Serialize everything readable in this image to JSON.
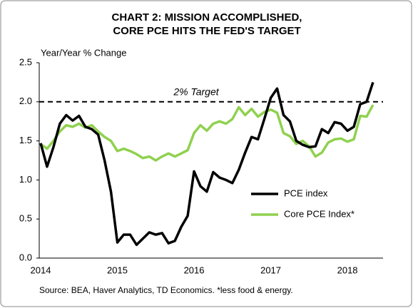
{
  "chart_data": {
    "type": "line",
    "title": [
      "CHART 2: MISSION ACCOMPLISHED,",
      "CORE PCE HITS THE FED'S TARGET"
    ],
    "y_label": "Year/Year % Change",
    "source": "Source: BEA, Haver Analytics, TD Economics. *less food & energy.",
    "categories": [
      "2014",
      null,
      null,
      null,
      null,
      null,
      null,
      null,
      null,
      null,
      null,
      null,
      "2015",
      null,
      null,
      null,
      null,
      null,
      null,
      null,
      null,
      null,
      null,
      null,
      "2016",
      null,
      null,
      null,
      null,
      null,
      null,
      null,
      null,
      null,
      null,
      null,
      "2017",
      null,
      null,
      null,
      null,
      null,
      null,
      null,
      null,
      null,
      null,
      null,
      "2018",
      null,
      null,
      null,
      null
    ],
    "series": [
      {
        "name": "PCE index",
        "color": "#000000",
        "values": [
          1.47,
          1.17,
          1.42,
          1.72,
          1.83,
          1.76,
          1.82,
          1.68,
          1.65,
          1.58,
          1.25,
          0.85,
          0.2,
          0.3,
          0.3,
          0.17,
          0.25,
          0.33,
          0.3,
          0.32,
          0.19,
          0.22,
          0.4,
          0.54,
          1.11,
          0.92,
          0.85,
          1.1,
          1.03,
          1.0,
          0.96,
          1.13,
          1.35,
          1.55,
          1.52,
          1.78,
          2.05,
          2.17,
          1.83,
          1.75,
          1.5,
          1.45,
          1.42,
          1.43,
          1.65,
          1.6,
          1.74,
          1.72,
          1.63,
          1.68,
          1.97,
          2.0,
          2.25
        ]
      },
      {
        "name": "Core PCE Index*",
        "color": "#8fd14f",
        "values": [
          1.46,
          1.4,
          1.5,
          1.62,
          1.7,
          1.68,
          1.72,
          1.67,
          1.7,
          1.62,
          1.55,
          1.5,
          1.37,
          1.4,
          1.37,
          1.33,
          1.28,
          1.3,
          1.25,
          1.3,
          1.34,
          1.3,
          1.34,
          1.38,
          1.6,
          1.7,
          1.63,
          1.72,
          1.75,
          1.72,
          1.78,
          1.93,
          1.83,
          1.91,
          1.81,
          1.87,
          1.9,
          1.86,
          1.6,
          1.56,
          1.46,
          1.5,
          1.43,
          1.3,
          1.35,
          1.48,
          1.52,
          1.53,
          1.49,
          1.52,
          1.82,
          1.81,
          1.96
        ]
      }
    ],
    "target": {
      "label": "2% Target",
      "value": 2
    },
    "ylim": [
      0,
      2.5
    ],
    "yticks": [
      {
        "value": 0,
        "label": "0.0"
      },
      0.5,
      {
        "value": 1,
        "label": "1.0"
      },
      1.5,
      {
        "value": 2,
        "label": "2.0"
      },
      2.5
    ],
    "legend": "lower right",
    "grid": false
  }
}
